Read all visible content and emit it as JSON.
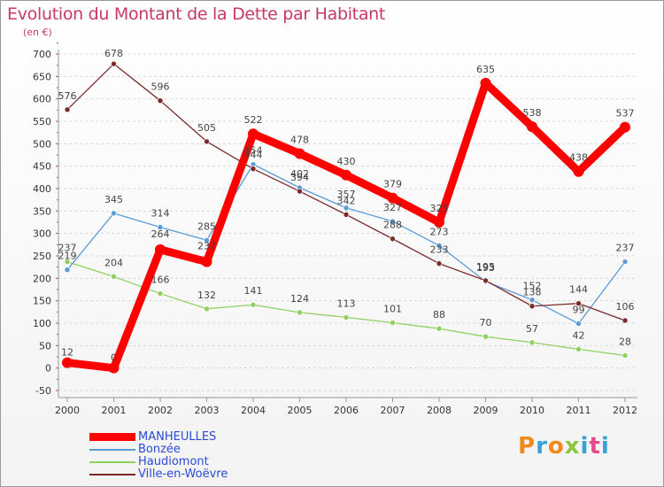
{
  "header": {
    "title": "Evolution du Montant de la Dette par Habitant",
    "subtitle": "(en €)"
  },
  "logo": {
    "text": "Proxiti"
  },
  "chart_data": {
    "type": "line",
    "title": "Evolution du Montant de la Dette par Habitant",
    "subtitle": "(en €)",
    "xlabel": "",
    "ylabel": "",
    "x": [
      "2000",
      "2001",
      "2002",
      "2003",
      "2004",
      "2005",
      "2006",
      "2007",
      "2008",
      "2009",
      "2010",
      "2011",
      "2012"
    ],
    "ylim": [
      -50,
      700
    ],
    "yticks": [
      "-50",
      "0",
      "50",
      "100",
      "150",
      "200",
      "250",
      "300",
      "350",
      "400",
      "450",
      "500",
      "550",
      "600",
      "650",
      "700"
    ],
    "grid": "horizontal dashed",
    "legend": "bottom-left",
    "series": [
      {
        "name": "MANHEULLES",
        "color": "#ff0000",
        "values": [
          12,
          0,
          264,
          237,
          522,
          478,
          430,
          379,
          325,
          635,
          538,
          438,
          537
        ],
        "labels": [
          "12",
          "0",
          "264",
          "237",
          "522",
          "478",
          "430",
          "379",
          "325",
          "635",
          "538",
          "438",
          "537"
        ]
      },
      {
        "name": "Bonzée",
        "color": "#5b9bd5",
        "values": [
          219,
          345,
          314,
          285,
          454,
          402,
          357,
          327,
          273,
          193,
          152,
          99,
          237
        ],
        "labels": [
          "219",
          "345",
          "314",
          "285",
          "454",
          "402",
          "357",
          "327",
          "273",
          "193",
          "152",
          "99",
          "237"
        ]
      },
      {
        "name": "Haudiomont",
        "color": "#90d060",
        "values": [
          237,
          204,
          166,
          132,
          141,
          124,
          113,
          101,
          88,
          70,
          57,
          42,
          28
        ],
        "labels": [
          "237",
          "204",
          "166",
          "132",
          "141",
          "124",
          "113",
          "101",
          "88",
          "70",
          "57",
          "42",
          "28"
        ]
      },
      {
        "name": "Ville-en-Woëvre",
        "color": "#7b2a2a",
        "values": [
          576,
          678,
          596,
          505,
          444,
          394,
          342,
          288,
          233,
          195,
          138,
          144,
          106
        ],
        "labels": [
          "576",
          "678",
          "596",
          "505",
          "444",
          "394",
          "342",
          "288",
          "233",
          "195",
          "138",
          "144",
          "106"
        ]
      }
    ]
  }
}
